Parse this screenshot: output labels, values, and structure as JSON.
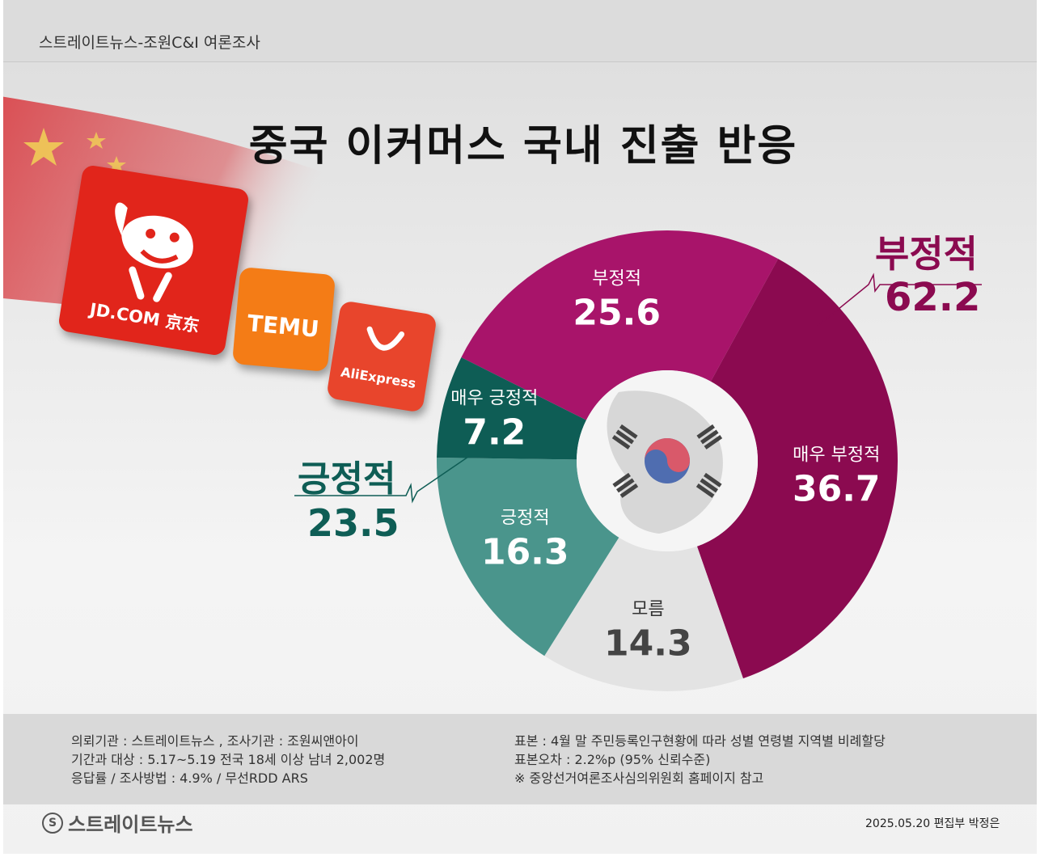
{
  "header": {
    "source": "스트레이트뉴스-조원C&I 여론조사"
  },
  "title": "중국 이커머스 국내 진출 반응",
  "logos": [
    {
      "name": "jd",
      "text": "JD.COM 京东",
      "color": "#e1251b"
    },
    {
      "name": "temu",
      "text": "TEMU",
      "color": "#f47c16"
    },
    {
      "name": "aliexpress",
      "text": "AliExpress",
      "color": "#e8452c"
    }
  ],
  "chart_data": {
    "type": "pie",
    "title": "중국 이커머스 국내 진출 반응",
    "slices": [
      {
        "label": "부정적",
        "value": 25.6,
        "color": "#a8146a"
      },
      {
        "label": "매우 부정적",
        "value": 36.7,
        "color": "#8b0a50"
      },
      {
        "label": "모름",
        "value": 14.3,
        "color": "#e3e3e3"
      },
      {
        "label": "긍정적",
        "value": 16.3,
        "color": "#4a958c"
      },
      {
        "label": "매우 긍정적",
        "value": 7.2,
        "color": "#0e5d55"
      }
    ],
    "groups": [
      {
        "label": "부정적",
        "value": "62.2",
        "color": "#8b0a50"
      },
      {
        "label": "긍정적",
        "value": "23.5",
        "color": "#0e5d55"
      }
    ]
  },
  "footer": {
    "left": [
      "의뢰기관 : 스트레이트뉴스 ,     조사기관 : 조원씨앤아이",
      "기간과 대상 : 5.17~5.19   전국 18세 이상 남녀 2,002명",
      "응답률 / 조사방법 : 4.9%   / 무선RDD ARS"
    ],
    "right": [
      "표본 : 4월 말 주민등록인구현황에 따라 성별 연령별 지역별 비례할당",
      "표본오차 : 2.2%p (95% 신뢰수준)",
      "※ 중앙선거여론조사심의위원회 홈페이지 참고"
    ]
  },
  "brand": {
    "name": "스트레이트뉴스",
    "icon": "S"
  },
  "credit": "2025.05.20 편집부 박정은"
}
